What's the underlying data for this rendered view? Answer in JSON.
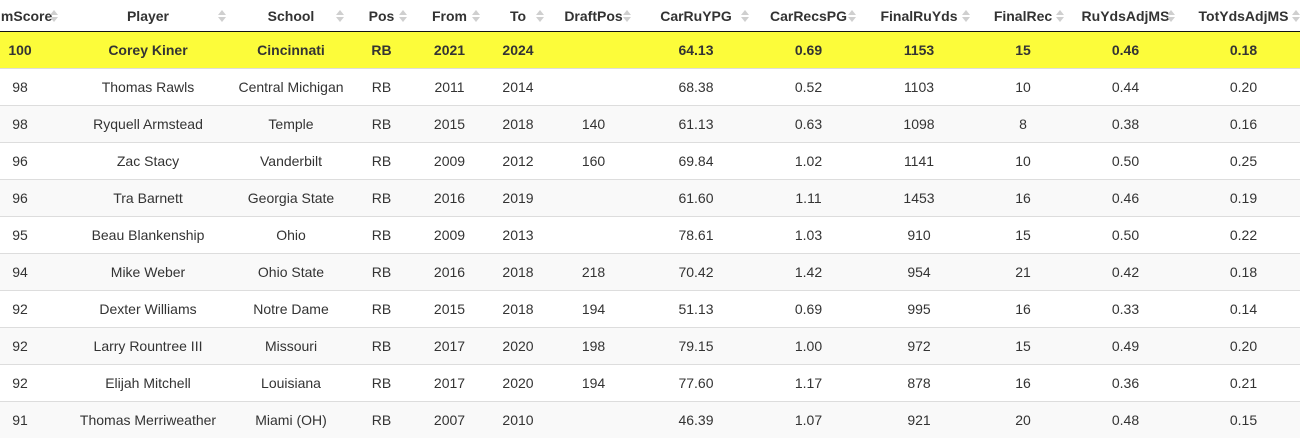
{
  "table": {
    "columns": [
      "SimScore",
      "Player",
      "School",
      "Pos",
      "From",
      "To",
      "DraftPos",
      "CarRuYPG",
      "CarRecsPG",
      "FinalRuYds",
      "FinalRec",
      "RuYdsAdjMS",
      "TotYdsAdjMS"
    ],
    "highlight_color": "#fcfc3a",
    "rows": [
      [
        "100",
        "Corey Kiner",
        "Cincinnati",
        "RB",
        "2021",
        "2024",
        "",
        "64.13",
        "0.69",
        "1153",
        "15",
        "0.46",
        "0.18"
      ],
      [
        "98",
        "Thomas Rawls",
        "Central Michigan",
        "RB",
        "2011",
        "2014",
        "",
        "68.38",
        "0.52",
        "1103",
        "10",
        "0.44",
        "0.20"
      ],
      [
        "98",
        "Ryquell Armstead",
        "Temple",
        "RB",
        "2015",
        "2018",
        "140",
        "61.13",
        "0.63",
        "1098",
        "8",
        "0.38",
        "0.16"
      ],
      [
        "96",
        "Zac Stacy",
        "Vanderbilt",
        "RB",
        "2009",
        "2012",
        "160",
        "69.84",
        "1.02",
        "1141",
        "10",
        "0.50",
        "0.25"
      ],
      [
        "96",
        "Tra Barnett",
        "Georgia State",
        "RB",
        "2016",
        "2019",
        "",
        "61.60",
        "1.11",
        "1453",
        "16",
        "0.46",
        "0.19"
      ],
      [
        "95",
        "Beau Blankenship",
        "Ohio",
        "RB",
        "2009",
        "2013",
        "",
        "78.61",
        "1.03",
        "910",
        "15",
        "0.50",
        "0.22"
      ],
      [
        "94",
        "Mike Weber",
        "Ohio State",
        "RB",
        "2016",
        "2018",
        "218",
        "70.42",
        "1.42",
        "954",
        "21",
        "0.42",
        "0.18"
      ],
      [
        "92",
        "Dexter Williams",
        "Notre Dame",
        "RB",
        "2015",
        "2018",
        "194",
        "51.13",
        "0.69",
        "995",
        "16",
        "0.33",
        "0.14"
      ],
      [
        "92",
        "Larry Rountree III",
        "Missouri",
        "RB",
        "2017",
        "2020",
        "198",
        "79.15",
        "1.00",
        "972",
        "15",
        "0.49",
        "0.20"
      ],
      [
        "92",
        "Elijah Mitchell",
        "Louisiana",
        "RB",
        "2017",
        "2020",
        "194",
        "77.60",
        "1.17",
        "878",
        "16",
        "0.36",
        "0.21"
      ],
      [
        "91",
        "Thomas Merriweather",
        "Miami (OH)",
        "RB",
        "2007",
        "2010",
        "",
        "46.39",
        "1.07",
        "921",
        "20",
        "0.48",
        "0.15"
      ]
    ]
  }
}
